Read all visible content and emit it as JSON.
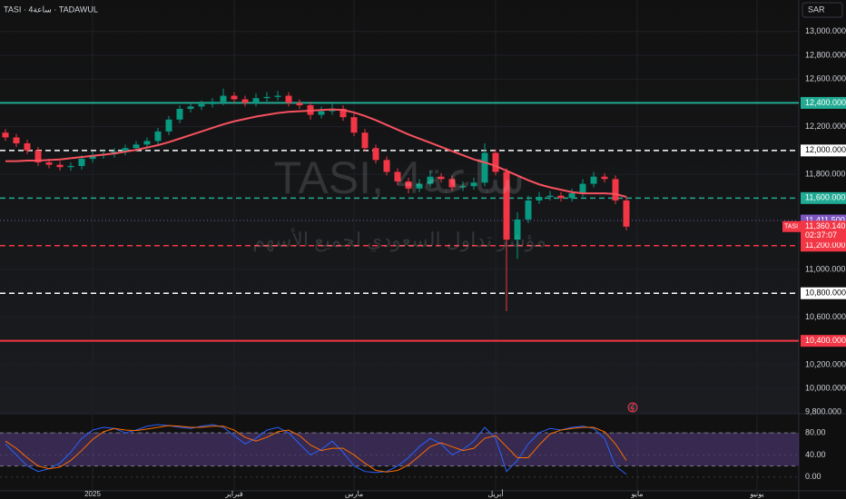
{
  "chart_data": {
    "type": "candlestick",
    "symbol_line": "TASI · 4ساعة · TADAWUL",
    "currency": "SAR",
    "watermark": "TASI, 4ساعة",
    "watermark_sub": "مؤشر تداول السعودي لجميع الأسهم",
    "categories": [
      null,
      null,
      null,
      null,
      null,
      null,
      null,
      null,
      "2025",
      null,
      null,
      null,
      null,
      null,
      null,
      null,
      null,
      null,
      null,
      null,
      null,
      "فبراير",
      null,
      null,
      null,
      null,
      null,
      null,
      null,
      null,
      null,
      null,
      "مارس",
      null,
      null,
      null,
      null,
      null,
      null,
      null,
      null,
      null,
      null,
      null,
      null,
      "أبريل",
      null,
      null,
      null,
      null,
      null,
      null,
      null,
      null,
      null,
      null,
      null,
      null,
      "مايو",
      null,
      null,
      null,
      null,
      null,
      null,
      null,
      null,
      null,
      null,
      "يونيو",
      null,
      null
    ],
    "open": [
      12150,
      12110,
      12060,
      12000,
      11900,
      11880,
      11860,
      11870,
      11930,
      11960,
      11970,
      11990,
      12020,
      12050,
      12080,
      12160,
      12260,
      12350,
      12370,
      12390,
      12410,
      12460,
      12430,
      12400,
      12440,
      12450,
      12460,
      12400,
      12380,
      12300,
      12330,
      12350,
      12280,
      12150,
      12020,
      11920,
      11820,
      11740,
      11680,
      11720,
      11780,
      11760,
      11690,
      11700,
      11730,
      11980,
      11820,
      11250,
      11420,
      11580,
      11610,
      11620,
      11600,
      11640,
      11720,
      11780,
      11760,
      11580,
      null,
      null,
      null,
      null,
      null,
      null,
      null,
      null,
      null,
      null,
      null,
      null,
      null,
      null
    ],
    "high": [
      12180,
      12140,
      12090,
      12030,
      11930,
      11910,
      11900,
      11960,
      11990,
      12000,
      12020,
      12050,
      12080,
      12110,
      12190,
      12290,
      12380,
      12400,
      12420,
      12440,
      12520,
      12490,
      12460,
      12480,
      12490,
      12500,
      12490,
      12430,
      12410,
      12370,
      12400,
      12380,
      12310,
      12180,
      12050,
      11950,
      11850,
      11770,
      11760,
      11830,
      11810,
      11790,
      11740,
      11770,
      12060,
      12010,
      11850,
      11480,
      11620,
      11650,
      11660,
      11650,
      11680,
      11760,
      11820,
      11810,
      11790,
      11610,
      null,
      null,
      null,
      null,
      null,
      null,
      null,
      null,
      null,
      null,
      null,
      null,
      null,
      null
    ],
    "low": [
      12080,
      12030,
      11970,
      11870,
      11850,
      11830,
      11830,
      11840,
      11900,
      11930,
      11940,
      11960,
      11990,
      12020,
      12050,
      12130,
      12230,
      12320,
      12340,
      12360,
      12380,
      12400,
      12370,
      12370,
      12410,
      12420,
      12370,
      12350,
      12260,
      12270,
      12300,
      12250,
      12120,
      11990,
      11890,
      11790,
      11710,
      11640,
      11650,
      11690,
      11730,
      11660,
      11660,
      11670,
      11700,
      11790,
      10650,
      11090,
      11390,
      11550,
      11580,
      11570,
      11570,
      11610,
      11690,
      11730,
      11550,
      11330,
      null,
      null,
      null,
      null,
      null,
      null,
      null,
      null,
      null,
      null,
      null,
      null,
      null,
      null
    ],
    "close": [
      12110,
      12060,
      12000,
      11900,
      11880,
      11860,
      11870,
      11930,
      11960,
      11970,
      11990,
      12020,
      12050,
      12080,
      12160,
      12260,
      12350,
      12370,
      12390,
      12410,
      12460,
      12430,
      12400,
      12440,
      12450,
      12460,
      12400,
      12380,
      12300,
      12330,
      12350,
      12280,
      12150,
      12020,
      11920,
      11820,
      11740,
      11680,
      11720,
      11780,
      11760,
      11690,
      11700,
      11730,
      11980,
      11820,
      11250,
      11420,
      11580,
      11610,
      11620,
      11600,
      11640,
      11720,
      11780,
      11760,
      11580,
      11360.14,
      null,
      null,
      null,
      null,
      null,
      null,
      null,
      null,
      null,
      null,
      null,
      null,
      null,
      null
    ],
    "up_color": "#089981",
    "down_color": "#f23645",
    "ma": {
      "color": "#f7525f",
      "values": [
        11910,
        11910,
        11915,
        11915,
        11920,
        11925,
        11935,
        11945,
        11955,
        11965,
        11975,
        11990,
        12005,
        12025,
        12045,
        12070,
        12100,
        12130,
        12160,
        12190,
        12220,
        12245,
        12265,
        12285,
        12300,
        12315,
        12325,
        12330,
        12335,
        12340,
        12345,
        12340,
        12320,
        12290,
        12255,
        12215,
        12175,
        12135,
        12100,
        12065,
        12030,
        11995,
        11960,
        11925,
        11900,
        11870,
        11830,
        11790,
        11750,
        11715,
        11690,
        11670,
        11650,
        11640,
        11640,
        11640,
        11635,
        11610,
        null,
        null,
        null,
        null,
        null,
        null,
        null,
        null,
        null,
        null,
        null,
        null,
        null,
        null
      ]
    },
    "ylim": [
      9795,
      13265
    ],
    "yticks": [
      {
        "value": 9800,
        "label": "9,800.000"
      },
      {
        "value": 10000,
        "label": "10,000.000"
      },
      {
        "value": 10200,
        "label": "10,200.000"
      },
      {
        "value": 10600,
        "label": "10,600.000"
      },
      {
        "value": 11000,
        "label": "11,000.000"
      },
      {
        "value": 11800,
        "label": "11,800.000"
      },
      {
        "value": 12200,
        "label": "12,200.000"
      },
      {
        "value": 12600,
        "label": "12,600.000"
      },
      {
        "value": 12800,
        "label": "12,800.000"
      },
      {
        "value": 13000,
        "label": "13,000.000"
      }
    ],
    "grid": true,
    "levels": [
      {
        "value": 12400,
        "label": "12,400.000",
        "color": "#22ab94",
        "style": "solid"
      },
      {
        "value": 12000,
        "label": "12,000.000",
        "color": "#ffffff",
        "style": "dashed"
      },
      {
        "value": 11600,
        "label": "11,600.000",
        "color": "#22ab94",
        "style": "dashed"
      },
      {
        "value": 11200,
        "label": "11,200.000",
        "color": "#f23645",
        "style": "dashed"
      },
      {
        "value": 10800,
        "label": "10,800.000",
        "color": "#ffffff",
        "style": "dashed"
      },
      {
        "value": 10400,
        "label": "10,400.000",
        "color": "#f23645",
        "style": "solid"
      }
    ],
    "current_line": {
      "value": 11411.5,
      "label": "11,411.500",
      "color": "#7e57c2"
    },
    "price_tag": {
      "value": 11360.14,
      "label": "11,360.140",
      "symbol": "TASI",
      "countdown": "02:37:07",
      "color": "#f23645"
    },
    "oscillator": {
      "ylim": [
        -25,
        113
      ],
      "yticks": [
        {
          "value": 80,
          "label": "80.00"
        },
        {
          "value": 40,
          "label": "40.00"
        },
        {
          "value": 0,
          "label": "0.00"
        }
      ],
      "band": [
        20,
        80
      ],
      "band_color": "#7e57c2",
      "series": [
        {
          "color": "#2962ff",
          "values": [
            60,
            40,
            20,
            10,
            15,
            25,
            45,
            70,
            85,
            90,
            88,
            80,
            85,
            92,
            95,
            93,
            90,
            88,
            92,
            95,
            90,
            75,
            60,
            70,
            85,
            90,
            80,
            60,
            40,
            50,
            65,
            45,
            20,
            10,
            8,
            10,
            20,
            35,
            55,
            70,
            60,
            40,
            50,
            65,
            90,
            70,
            10,
            30,
            60,
            80,
            88,
            85,
            90,
            92,
            88,
            70,
            20,
            5,
            null,
            null,
            null,
            null,
            null,
            null,
            null,
            null,
            null,
            null,
            null,
            null,
            null,
            null
          ]
        },
        {
          "color": "#ff6d00",
          "values": [
            65,
            52,
            35,
            20,
            15,
            18,
            30,
            48,
            68,
            82,
            88,
            85,
            84,
            87,
            90,
            93,
            92,
            90,
            90,
            92,
            92,
            85,
            72,
            65,
            72,
            82,
            85,
            75,
            58,
            48,
            52,
            52,
            40,
            25,
            12,
            9,
            12,
            22,
            38,
            55,
            62,
            55,
            48,
            52,
            70,
            75,
            55,
            35,
            35,
            58,
            78,
            85,
            88,
            90,
            90,
            82,
            60,
            30,
            null,
            null,
            null,
            null,
            null,
            null,
            null,
            null,
            null,
            null,
            null,
            null,
            null,
            null
          ]
        }
      ]
    }
  }
}
